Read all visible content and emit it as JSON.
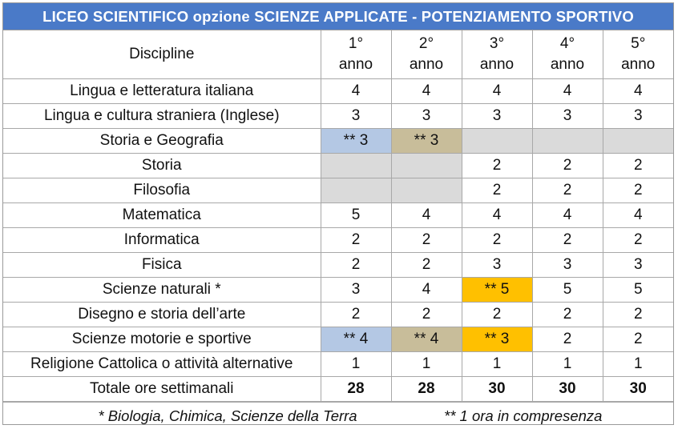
{
  "title": "LICEO SCIENTIFICO  opzione SCIENZE  APPLICATE  - POTENZIAMENTO  SPORTIVO",
  "header": {
    "discipline": "Discipline",
    "years": [
      {
        "num": "1°",
        "label": "anno"
      },
      {
        "num": "2°",
        "label": "anno"
      },
      {
        "num": "3°",
        "label": "anno"
      },
      {
        "num": "4°",
        "label": "anno"
      },
      {
        "num": "5°",
        "label": "anno"
      }
    ]
  },
  "rows": [
    {
      "name": "Lingua e letteratura italiana",
      "cells": [
        "4",
        "4",
        "4",
        "4",
        "4"
      ]
    },
    {
      "name": "Lingua e cultura straniera (Inglese)",
      "cells": [
        "3",
        "3",
        "3",
        "3",
        "3"
      ]
    },
    {
      "name": "Storia e Geografia",
      "cells": [
        "** 3",
        "** 3",
        "",
        "",
        ""
      ]
    },
    {
      "name": "Storia",
      "cells": [
        "",
        "",
        "2",
        "2",
        "2"
      ]
    },
    {
      "name": "Filosofia",
      "cells": [
        "",
        "",
        "2",
        "2",
        "2"
      ]
    },
    {
      "name": "Matematica",
      "cells": [
        "5",
        "4",
        "4",
        "4",
        "4"
      ]
    },
    {
      "name": "Informatica",
      "cells": [
        "2",
        "2",
        "2",
        "2",
        "2"
      ]
    },
    {
      "name": "Fisica",
      "cells": [
        "2",
        "2",
        "3",
        "3",
        "3"
      ]
    },
    {
      "name": "Scienze naturali *",
      "cells": [
        "3",
        "4",
        "** 5",
        "5",
        "5"
      ]
    },
    {
      "name": "Disegno e storia dell’arte",
      "cells": [
        "2",
        "2",
        "2",
        "2",
        "2"
      ]
    },
    {
      "name": "Scienze motorie e sportive",
      "cells": [
        "** 4",
        "** 4",
        "** 3",
        "2",
        "2"
      ]
    },
    {
      "name": "Religione Cattolica o attività alternative",
      "cells": [
        "1",
        "1",
        "1",
        "1",
        "1"
      ]
    }
  ],
  "total": {
    "name": "Totale ore settimanali",
    "cells": [
      "28",
      "28",
      "30",
      "30",
      "30"
    ]
  },
  "footnotes": {
    "left": "* Biologia, Chimica, Scienze della Terra",
    "right": "** 1 ora in compresenza"
  },
  "colors": {
    "title_bg": "#4a7ac8",
    "blue": "#b4c8e4",
    "tan": "#c8bd9a",
    "gray": "#dadada",
    "orange": "#ffc000"
  }
}
